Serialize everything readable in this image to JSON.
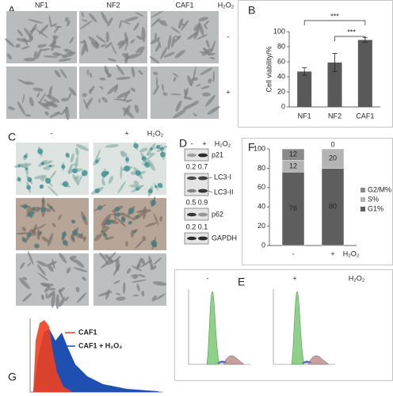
{
  "panel_a": {
    "label": "A",
    "columns": [
      "NF1",
      "NF2",
      "CAF1"
    ],
    "treatment": "H₂O₂",
    "conditions": [
      "-",
      "+"
    ]
  },
  "chart_data": [
    {
      "type": "bar",
      "label": "B",
      "y_label": "Cell viability/%",
      "categories": [
        "NF1",
        "NF2",
        "CAF1"
      ],
      "values": [
        47,
        59,
        89
      ],
      "errors": [
        5,
        12,
        3
      ],
      "color": "#595959",
      "ylim": [
        0,
        100
      ],
      "yticks": [
        0,
        20,
        40,
        60,
        80,
        100
      ],
      "annotations": [
        "***",
        "***"
      ]
    },
    {
      "type": "stacked_bar",
      "label": "F",
      "x_label": "H₂O₂",
      "categories": [
        "-",
        "+"
      ],
      "series": [
        {
          "name": "G1%",
          "color": "#5e5e5e",
          "values": [
            76,
            80
          ]
        },
        {
          "name": "S%",
          "color": "#b4b4b4",
          "values": [
            12,
            20
          ]
        },
        {
          "name": "G2/M%",
          "color": "#8a8a8a",
          "values": [
            12,
            0
          ]
        }
      ],
      "ylim": [
        0,
        100
      ],
      "yticks": [
        0,
        20,
        40,
        60,
        80,
        100
      ]
    }
  ],
  "panel_c": {
    "label": "C",
    "conditions": [
      "-",
      "+"
    ],
    "treatment": "H₂O₂"
  },
  "panel_d": {
    "label": "D",
    "conditions": [
      "-",
      "+"
    ],
    "treatment": "H₂O₂",
    "bands": [
      "p21",
      "LC3-I",
      "LC3-II",
      "p62",
      "GAPDH"
    ],
    "ratios": [
      [
        0.2,
        0.7
      ],
      [
        0.5,
        0.9
      ],
      [
        0.2,
        0.1
      ]
    ]
  },
  "panel_e": {
    "label": "E",
    "conditions": [
      "-",
      "+"
    ],
    "treatment": "H₂O₂"
  },
  "panel_g": {
    "label": "G",
    "legend": [
      "CAF1",
      "CAF1 + H₂O₂"
    ]
  }
}
